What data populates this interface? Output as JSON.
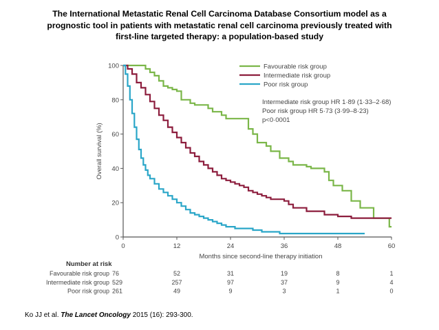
{
  "slide": {
    "title_lines": [
      "The International Metastatic Renal Cell Carcinoma Database Consortium model as a",
      "prognostic tool in patients with metastatic renal cell carcinoma previously treated with",
      "first-line targeted therapy: a population-based study"
    ],
    "citation_pre": "Ko JJ et al. ",
    "citation_journal": "The Lancet Oncology",
    "citation_post": " 2015 (16): 293-300."
  },
  "chart_data": {
    "type": "line",
    "subtype": "kaplan-meier step",
    "xlabel": "Months since second-line therapy initiation",
    "ylabel": "Overall survival (%)",
    "xlim": [
      0,
      60
    ],
    "ylim": [
      0,
      100
    ],
    "x_ticks": [
      0,
      12,
      24,
      36,
      48,
      60
    ],
    "y_ticks": [
      0,
      20,
      40,
      60,
      80,
      100
    ],
    "grid": false,
    "legend_position": "top-right",
    "series": [
      {
        "name": "Favourable risk group",
        "color": "#7ab648",
        "points": [
          [
            0,
            100
          ],
          [
            4,
            100
          ],
          [
            5,
            98
          ],
          [
            6,
            96
          ],
          [
            7,
            94
          ],
          [
            8,
            91
          ],
          [
            9,
            88
          ],
          [
            10,
            87
          ],
          [
            11,
            86
          ],
          [
            12,
            85
          ],
          [
            13,
            80
          ],
          [
            14,
            80
          ],
          [
            15,
            78
          ],
          [
            16,
            77
          ],
          [
            18,
            77
          ],
          [
            19,
            75
          ],
          [
            20,
            73
          ],
          [
            21,
            73
          ],
          [
            22,
            71
          ],
          [
            23,
            69
          ],
          [
            27,
            69
          ],
          [
            28,
            63
          ],
          [
            29,
            60
          ],
          [
            30,
            55
          ],
          [
            31,
            55
          ],
          [
            32,
            53
          ],
          [
            33,
            50
          ],
          [
            34,
            50
          ],
          [
            35,
            46
          ],
          [
            36,
            46
          ],
          [
            37,
            44
          ],
          [
            38,
            42
          ],
          [
            40,
            42
          ],
          [
            41,
            41
          ],
          [
            42,
            40
          ],
          [
            44,
            40
          ],
          [
            45,
            38
          ],
          [
            46,
            33
          ],
          [
            47,
            30
          ],
          [
            48,
            30
          ],
          [
            49,
            27
          ],
          [
            50,
            27
          ],
          [
            51,
            21
          ],
          [
            52,
            21
          ],
          [
            53,
            17
          ],
          [
            55,
            17
          ],
          [
            56,
            11
          ],
          [
            59,
            11
          ],
          [
            59.5,
            6
          ],
          [
            60,
            6
          ]
        ]
      },
      {
        "name": "Intermediate risk group",
        "color": "#8c1c3c",
        "points": [
          [
            0,
            100
          ],
          [
            1,
            98
          ],
          [
            2,
            95
          ],
          [
            3,
            90
          ],
          [
            4,
            87
          ],
          [
            5,
            83
          ],
          [
            6,
            79
          ],
          [
            7,
            75
          ],
          [
            8,
            71
          ],
          [
            9,
            68
          ],
          [
            10,
            64
          ],
          [
            11,
            61
          ],
          [
            12,
            58
          ],
          [
            13,
            55
          ],
          [
            14,
            52
          ],
          [
            15,
            49
          ],
          [
            16,
            47
          ],
          [
            17,
            44
          ],
          [
            18,
            42
          ],
          [
            19,
            40
          ],
          [
            20,
            38
          ],
          [
            21,
            36
          ],
          [
            22,
            34
          ],
          [
            23,
            33
          ],
          [
            24,
            32
          ],
          [
            25,
            31
          ],
          [
            26,
            30
          ],
          [
            27,
            29
          ],
          [
            28,
            27
          ],
          [
            29,
            26
          ],
          [
            30,
            25
          ],
          [
            31,
            24
          ],
          [
            32,
            23
          ],
          [
            33,
            22
          ],
          [
            35,
            22
          ],
          [
            36,
            21
          ],
          [
            37,
            19
          ],
          [
            38,
            17
          ],
          [
            40,
            17
          ],
          [
            41,
            15
          ],
          [
            44,
            15
          ],
          [
            45,
            13
          ],
          [
            47,
            13
          ],
          [
            48,
            12
          ],
          [
            49,
            12
          ],
          [
            50,
            12
          ],
          [
            51,
            11
          ],
          [
            60,
            11
          ]
        ]
      },
      {
        "name": "Poor risk group",
        "color": "#2aa6c8",
        "points": [
          [
            0,
            100
          ],
          [
            0.5,
            95
          ],
          [
            1,
            88
          ],
          [
            1.5,
            80
          ],
          [
            2,
            72
          ],
          [
            2.5,
            64
          ],
          [
            3,
            57
          ],
          [
            3.5,
            51
          ],
          [
            4,
            46
          ],
          [
            4.5,
            42
          ],
          [
            5,
            39
          ],
          [
            5.5,
            36
          ],
          [
            6,
            34
          ],
          [
            7,
            31
          ],
          [
            8,
            28
          ],
          [
            9,
            26
          ],
          [
            10,
            24
          ],
          [
            11,
            22
          ],
          [
            12,
            20
          ],
          [
            13,
            18
          ],
          [
            14,
            16
          ],
          [
            15,
            14
          ],
          [
            16,
            13
          ],
          [
            17,
            12
          ],
          [
            18,
            11
          ],
          [
            19,
            10
          ],
          [
            20,
            9
          ],
          [
            21,
            8
          ],
          [
            22,
            7
          ],
          [
            23,
            6
          ],
          [
            24,
            6
          ],
          [
            25,
            5
          ],
          [
            28,
            5
          ],
          [
            29,
            4
          ],
          [
            30,
            4
          ],
          [
            31,
            3
          ],
          [
            34,
            3
          ],
          [
            35,
            2
          ],
          [
            54,
            2
          ]
        ]
      }
    ],
    "annotations": [
      "Intermediate risk group HR 1·89 (1·33–2·68)",
      "Poor risk group HR 5·73 (3·99–8·23)",
      "p<0·0001"
    ],
    "risk_table": {
      "title": "Number at risk",
      "columns": [
        0,
        12,
        24,
        36,
        48,
        60
      ],
      "rows": [
        {
          "label": "Favourable risk group",
          "values": [
            "76",
            "52",
            "31",
            "19",
            "8",
            "1"
          ]
        },
        {
          "label": "Intermediate risk group",
          "values": [
            "529",
            "257",
            "97",
            "37",
            "9",
            "4"
          ]
        },
        {
          "label": "Poor risk group",
          "values": [
            "261",
            "49",
            "9",
            "3",
            "1",
            "0"
          ]
        }
      ]
    }
  }
}
